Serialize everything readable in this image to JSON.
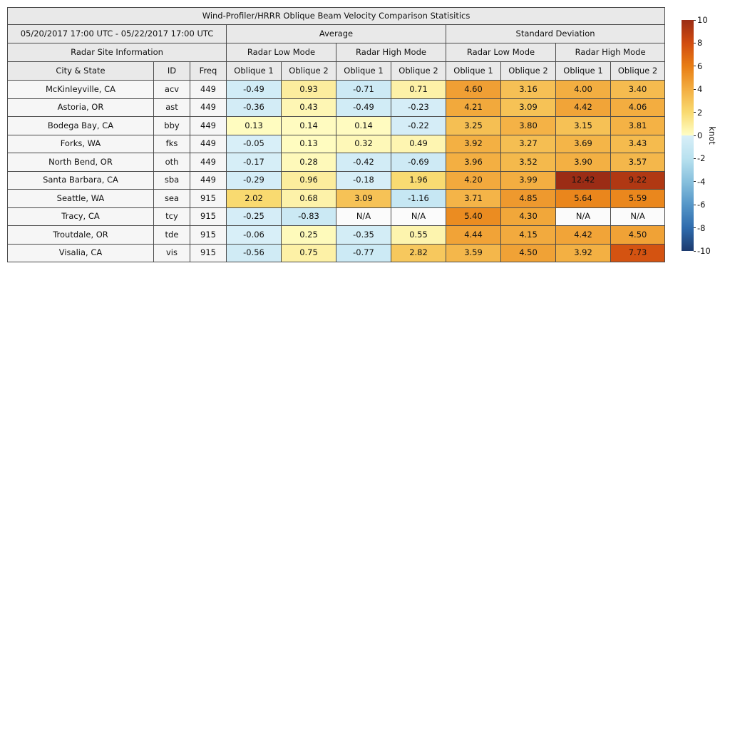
{
  "title": "Wind-Profiler/HRRR Oblique Beam Velocity Comparison Statisitics",
  "header": {
    "date_range": "05/20/2017 17:00 UTC - 05/22/2017 17:00 UTC",
    "group_average": "Average",
    "group_std": "Standard Deviation",
    "radar_site_info": "Radar Site Information",
    "mode_labels": [
      "Radar Low Mode",
      "Radar High Mode",
      "Radar Low Mode",
      "Radar High Mode"
    ],
    "col_city": "City & State",
    "col_id": "ID",
    "col_freq": "Freq",
    "oblique_labels": [
      "Oblique 1",
      "Oblique 2"
    ]
  },
  "colorbar": {
    "label": "knot",
    "min": -10,
    "max": 10,
    "ticks": [
      10,
      8,
      6,
      4,
      2,
      0,
      -2,
      -4,
      -6,
      -8,
      -10
    ],
    "anchors": [
      {
        "v": -10,
        "c": "#1c3a6e"
      },
      {
        "v": -8,
        "c": "#2e6bad"
      },
      {
        "v": -6,
        "c": "#5596c8"
      },
      {
        "v": -4,
        "c": "#87c0dd"
      },
      {
        "v": -2,
        "c": "#b8e1ef"
      },
      {
        "v": -0.001,
        "c": "#d9eff8"
      },
      {
        "v": 0,
        "c": "#fffec6"
      },
      {
        "v": 2,
        "c": "#f9da70"
      },
      {
        "v": 4,
        "c": "#f3ae41"
      },
      {
        "v": 6,
        "c": "#e87d14"
      },
      {
        "v": 8,
        "c": "#d14c10"
      },
      {
        "v": 10,
        "c": "#9b2c15"
      }
    ]
  },
  "chart_data": {
    "type": "table",
    "title": "Wind-Profiler/HRRR Oblique Beam Velocity Comparison Statisitics",
    "subtitle": "05/20/2017 17:00 UTC - 05/22/2017 17:00 UTC",
    "units": "knot",
    "na_text": "N/A",
    "colorbar_range": [
      -10,
      10
    ],
    "value_columns": [
      "Average / Radar Low Mode / Oblique 1",
      "Average / Radar Low Mode / Oblique 2",
      "Average / Radar High Mode / Oblique 1",
      "Average / Radar High Mode / Oblique 2",
      "Standard Deviation / Radar Low Mode / Oblique 1",
      "Standard Deviation / Radar Low Mode / Oblique 2",
      "Standard Deviation / Radar High Mode / Oblique 1",
      "Standard Deviation / Radar High Mode / Oblique 2"
    ],
    "rows": [
      {
        "city": "McKinleyville, CA",
        "id": "acv",
        "freq": "449",
        "values": [
          -0.49,
          0.93,
          -0.71,
          0.71,
          4.6,
          3.16,
          4.0,
          3.4
        ]
      },
      {
        "city": "Astoria, OR",
        "id": "ast",
        "freq": "449",
        "values": [
          -0.36,
          0.43,
          -0.49,
          -0.23,
          4.21,
          3.09,
          4.42,
          4.06
        ]
      },
      {
        "city": "Bodega Bay, CA",
        "id": "bby",
        "freq": "449",
        "values": [
          0.13,
          0.14,
          0.14,
          -0.22,
          3.25,
          3.8,
          3.15,
          3.81
        ]
      },
      {
        "city": "Forks, WA",
        "id": "fks",
        "freq": "449",
        "values": [
          -0.05,
          0.13,
          0.32,
          0.49,
          3.92,
          3.27,
          3.69,
          3.43
        ]
      },
      {
        "city": "North Bend, OR",
        "id": "oth",
        "freq": "449",
        "values": [
          -0.17,
          0.28,
          -0.42,
          -0.69,
          3.96,
          3.52,
          3.9,
          3.57
        ]
      },
      {
        "city": "Santa Barbara, CA",
        "id": "sba",
        "freq": "449",
        "values": [
          -0.29,
          0.96,
          -0.18,
          1.96,
          4.2,
          3.99,
          12.42,
          9.22
        ]
      },
      {
        "city": "Seattle, WA",
        "id": "sea",
        "freq": "915",
        "values": [
          2.02,
          0.68,
          3.09,
          -1.16,
          3.71,
          4.85,
          5.64,
          5.59
        ]
      },
      {
        "city": "Tracy, CA",
        "id": "tcy",
        "freq": "915",
        "values": [
          -0.25,
          -0.83,
          null,
          null,
          5.4,
          4.3,
          null,
          null
        ]
      },
      {
        "city": "Troutdale, OR",
        "id": "tde",
        "freq": "915",
        "values": [
          -0.06,
          0.25,
          -0.35,
          0.55,
          4.44,
          4.15,
          4.42,
          4.5
        ]
      },
      {
        "city": "Visalia, CA",
        "id": "vis",
        "freq": "915",
        "values": [
          -0.56,
          0.75,
          -0.77,
          2.82,
          3.59,
          4.5,
          3.92,
          7.73
        ]
      }
    ]
  }
}
